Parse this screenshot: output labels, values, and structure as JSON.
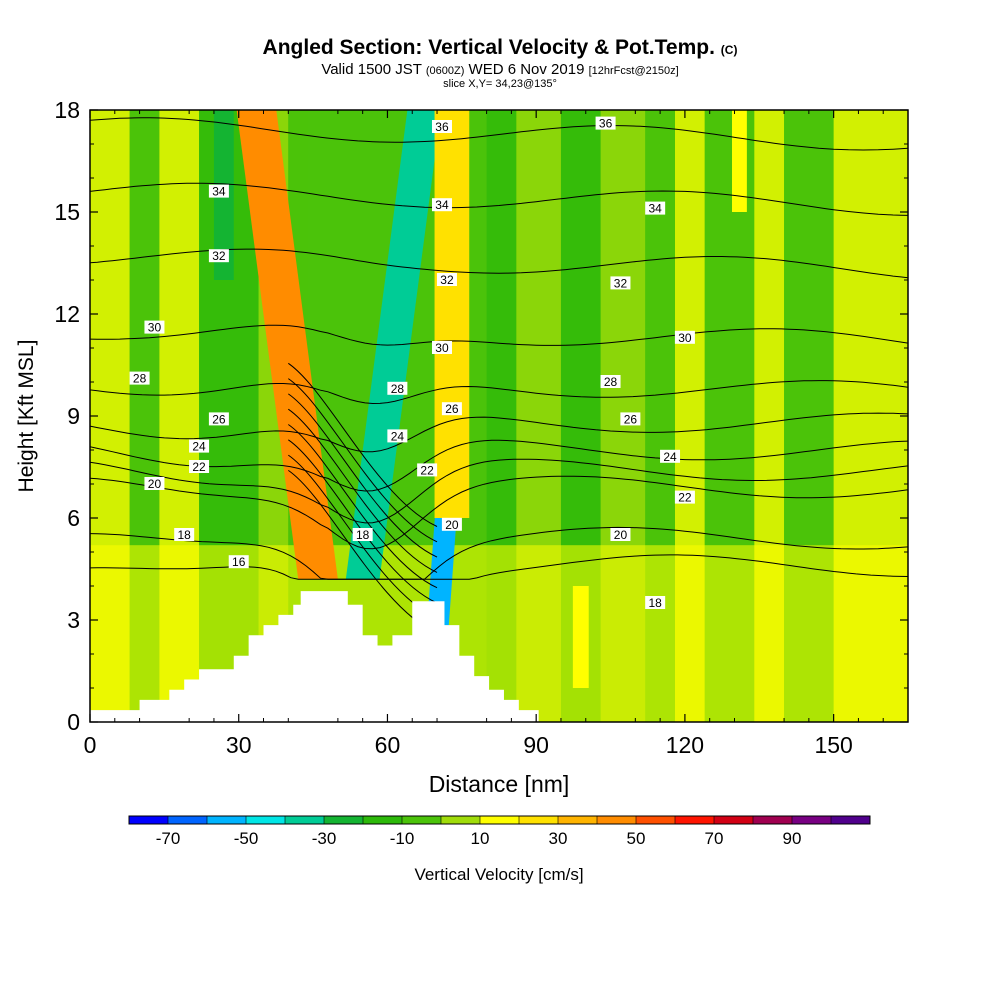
{
  "header": {
    "title": "Angled Section: Vertical Velocity & Pot.Temp.",
    "title_mark": "(C)",
    "valid_prefix": "Valid 1500 JST",
    "valid_utc": "(0600Z)",
    "valid_date": "WED 6 Nov 2019",
    "forecast": "[12hrFcst@2150z]",
    "slice": "slice X,Y= 34,23@135°"
  },
  "colorbar": {
    "label": "Vertical Velocity [cm/s]",
    "tick_labels": [
      "-70",
      "-50",
      "-30",
      "-10",
      "10",
      "30",
      "50",
      "70",
      "90"
    ],
    "colors": [
      "#0000ff",
      "#0064ff",
      "#00b4ff",
      "#00e6e6",
      "#00cc96",
      "#14b432",
      "#2db90a",
      "#4bc30a",
      "#a0dc0a",
      "#ffff00",
      "#ffe100",
      "#ffb400",
      "#ff8c00",
      "#ff5000",
      "#ff1400",
      "#d20014",
      "#a00050",
      "#780082",
      "#50008c"
    ]
  },
  "chart_data": {
    "type": "contour",
    "xlabel": "Distance [nm]",
    "ylabel": "Height [Kft MSL]",
    "xlim": [
      0,
      165
    ],
    "ylim": [
      0,
      18
    ],
    "xticks": [
      0,
      30,
      60,
      90,
      120,
      150
    ],
    "yticks": [
      0,
      3,
      6,
      9,
      12,
      15,
      18
    ],
    "filled_field": "Vertical Velocity [cm/s]",
    "contour_field": "Potential Temperature [C]",
    "terrain_profile": [
      [
        0,
        0.35
      ],
      [
        10,
        0.35
      ],
      [
        10,
        0.65
      ],
      [
        16,
        0.65
      ],
      [
        16,
        0.95
      ],
      [
        19,
        0.95
      ],
      [
        19,
        1.25
      ],
      [
        22,
        1.25
      ],
      [
        22,
        1.55
      ],
      [
        29,
        1.55
      ],
      [
        29,
        1.95
      ],
      [
        32,
        1.95
      ],
      [
        32,
        2.55
      ],
      [
        35,
        2.55
      ],
      [
        35,
        2.85
      ],
      [
        38,
        2.85
      ],
      [
        38,
        3.15
      ],
      [
        41,
        3.15
      ],
      [
        41,
        3.45
      ],
      [
        42.5,
        3.45
      ],
      [
        42.5,
        3.85
      ],
      [
        52,
        3.85
      ],
      [
        52,
        3.45
      ],
      [
        55,
        3.45
      ],
      [
        55,
        2.55
      ],
      [
        58,
        2.55
      ],
      [
        58,
        2.25
      ],
      [
        61,
        2.25
      ],
      [
        61,
        2.55
      ],
      [
        65,
        2.55
      ],
      [
        65,
        3.55
      ],
      [
        71.5,
        3.55
      ],
      [
        71.5,
        2.85
      ],
      [
        74.5,
        2.85
      ],
      [
        74.5,
        1.95
      ],
      [
        77.5,
        1.95
      ],
      [
        77.5,
        1.35
      ],
      [
        80.5,
        1.35
      ],
      [
        80.5,
        0.95
      ],
      [
        83.5,
        0.95
      ],
      [
        83.5,
        0.65
      ],
      [
        86.5,
        0.65
      ],
      [
        86.5,
        0.35
      ],
      [
        90.5,
        0.35
      ],
      [
        90.5,
        0
      ],
      [
        165,
        0
      ]
    ],
    "velocity_bands": [
      {
        "x": 47,
        "half_width": 2.2,
        "y0": 4.2,
        "y1": 18,
        "value": 75,
        "slope": -0.9
      },
      {
        "x": 46,
        "half_width": 4.0,
        "y0": 4.2,
        "y1": 18,
        "value": 40,
        "slope": -0.9
      },
      {
        "x": 54,
        "half_width": 1.8,
        "y0": 4.2,
        "y1": 18,
        "value": -65,
        "slope": 0.9
      },
      {
        "x": 55,
        "half_width": 3.4,
        "y0": 4.2,
        "y1": 18,
        "value": -35,
        "slope": 0.9
      },
      {
        "x": 70,
        "half_width": 2.2,
        "y0": 2.5,
        "y1": 6.0,
        "value": -55,
        "slope": 0.5
      },
      {
        "x": 73,
        "half_width": 3.5,
        "y0": 6.0,
        "y1": 18,
        "value": 25,
        "slope": 0
      },
      {
        "x": 99,
        "half_width": 1.6,
        "y0": 1.0,
        "y1": 4.0,
        "value": 18,
        "slope": 0
      },
      {
        "x": 27,
        "half_width": 2.0,
        "y0": 13,
        "y1": 18,
        "value": -30,
        "slope": 0
      },
      {
        "x": 131,
        "half_width": 1.5,
        "y0": 15,
        "y1": 18,
        "value": 12,
        "slope": 0
      }
    ],
    "isentropes": [
      {
        "label": "16",
        "y": 4.7,
        "label_x": 30
      },
      {
        "label": "18",
        "y": 5.5,
        "label_x": 19
      },
      {
        "label": "20",
        "y": 7.0,
        "label_x": 13
      },
      {
        "label": "22",
        "y": 7.5,
        "label_x": 22
      },
      {
        "label": "24",
        "y": 8.1,
        "label_x": 22
      },
      {
        "label": "26",
        "y": 8.9,
        "label_x": 26
      },
      {
        "label": "28",
        "y": 10.1,
        "label_x": 10
      },
      {
        "label": "30",
        "y": 11.6,
        "label_x": 13
      },
      {
        "label": "32",
        "y": 13.7,
        "label_x": 26
      },
      {
        "label": "34",
        "y": 15.6,
        "label_x": 26
      },
      {
        "label": "36",
        "y": 17.5,
        "label_x": 71
      }
    ],
    "extra_contour_labels": [
      {
        "label": "18",
        "x": 55,
        "y": 5.5
      },
      {
        "label": "20",
        "x": 73,
        "y": 5.8
      },
      {
        "label": "22",
        "x": 68,
        "y": 7.4
      },
      {
        "label": "24",
        "x": 62,
        "y": 8.4
      },
      {
        "label": "26",
        "x": 73,
        "y": 9.2
      },
      {
        "label": "28",
        "x": 62,
        "y": 9.8
      },
      {
        "label": "30",
        "x": 71,
        "y": 11.0
      },
      {
        "label": "32",
        "x": 72,
        "y": 13.0
      },
      {
        "label": "34",
        "x": 71,
        "y": 15.2
      },
      {
        "label": "36",
        "x": 104,
        "y": 17.6
      },
      {
        "label": "34",
        "x": 114,
        "y": 15.1
      },
      {
        "label": "32",
        "x": 107,
        "y": 12.9
      },
      {
        "label": "30",
        "x": 120,
        "y": 11.3
      },
      {
        "label": "28",
        "x": 105,
        "y": 10.0
      },
      {
        "label": "26",
        "x": 109,
        "y": 8.9
      },
      {
        "label": "24",
        "x": 117,
        "y": 7.8
      },
      {
        "label": "22",
        "x": 120,
        "y": 6.6
      },
      {
        "label": "20",
        "x": 107,
        "y": 5.5
      },
      {
        "label": "18",
        "x": 114,
        "y": 3.5
      }
    ]
  }
}
